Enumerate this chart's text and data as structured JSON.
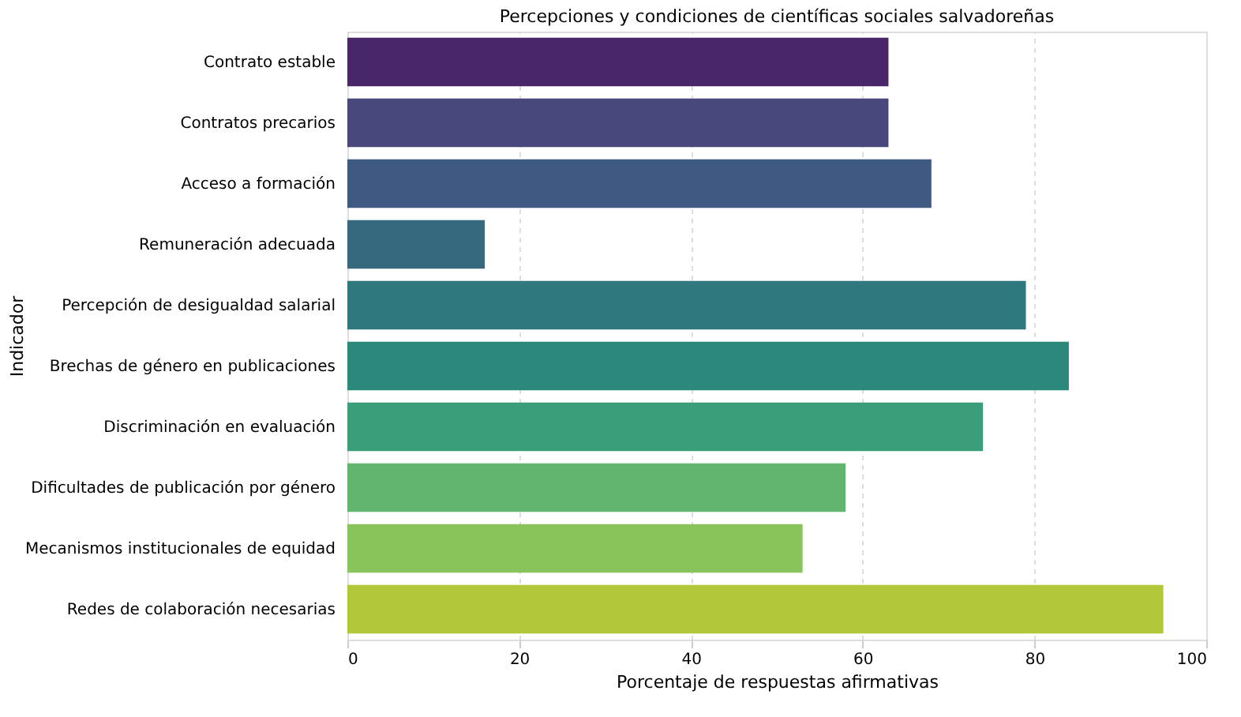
{
  "chart_data": {
    "type": "bar",
    "orientation": "horizontal",
    "title": "Percepciones y condiciones de científicas sociales salvadoreñas",
    "xlabel": "Porcentaje de respuestas afirmativas",
    "ylabel": "Indicador",
    "categories": [
      "Contrato estable",
      "Contratos precarios",
      "Acceso a formación",
      "Remuneración adecuada",
      "Percepción de desigualdad salarial",
      "Brechas de género en publicaciones",
      "Discriminación en evaluación",
      "Dificultades de publicación por género",
      "Mecanismos institucionales de equidad",
      "Redes de colaboración necesarias"
    ],
    "values": [
      63,
      63,
      68,
      16,
      79,
      84,
      74,
      58,
      53,
      95
    ],
    "colors": [
      "#482668",
      "#48487d",
      "#3f5a82",
      "#37697e",
      "#2e787e",
      "#2c887a",
      "#3a9e78",
      "#62b56f",
      "#88c35b",
      "#b2c839"
    ],
    "xlim": [
      0,
      100
    ],
    "xticks": [
      0,
      20,
      40,
      60,
      80,
      100
    ],
    "grid": "x",
    "legend": false
  }
}
